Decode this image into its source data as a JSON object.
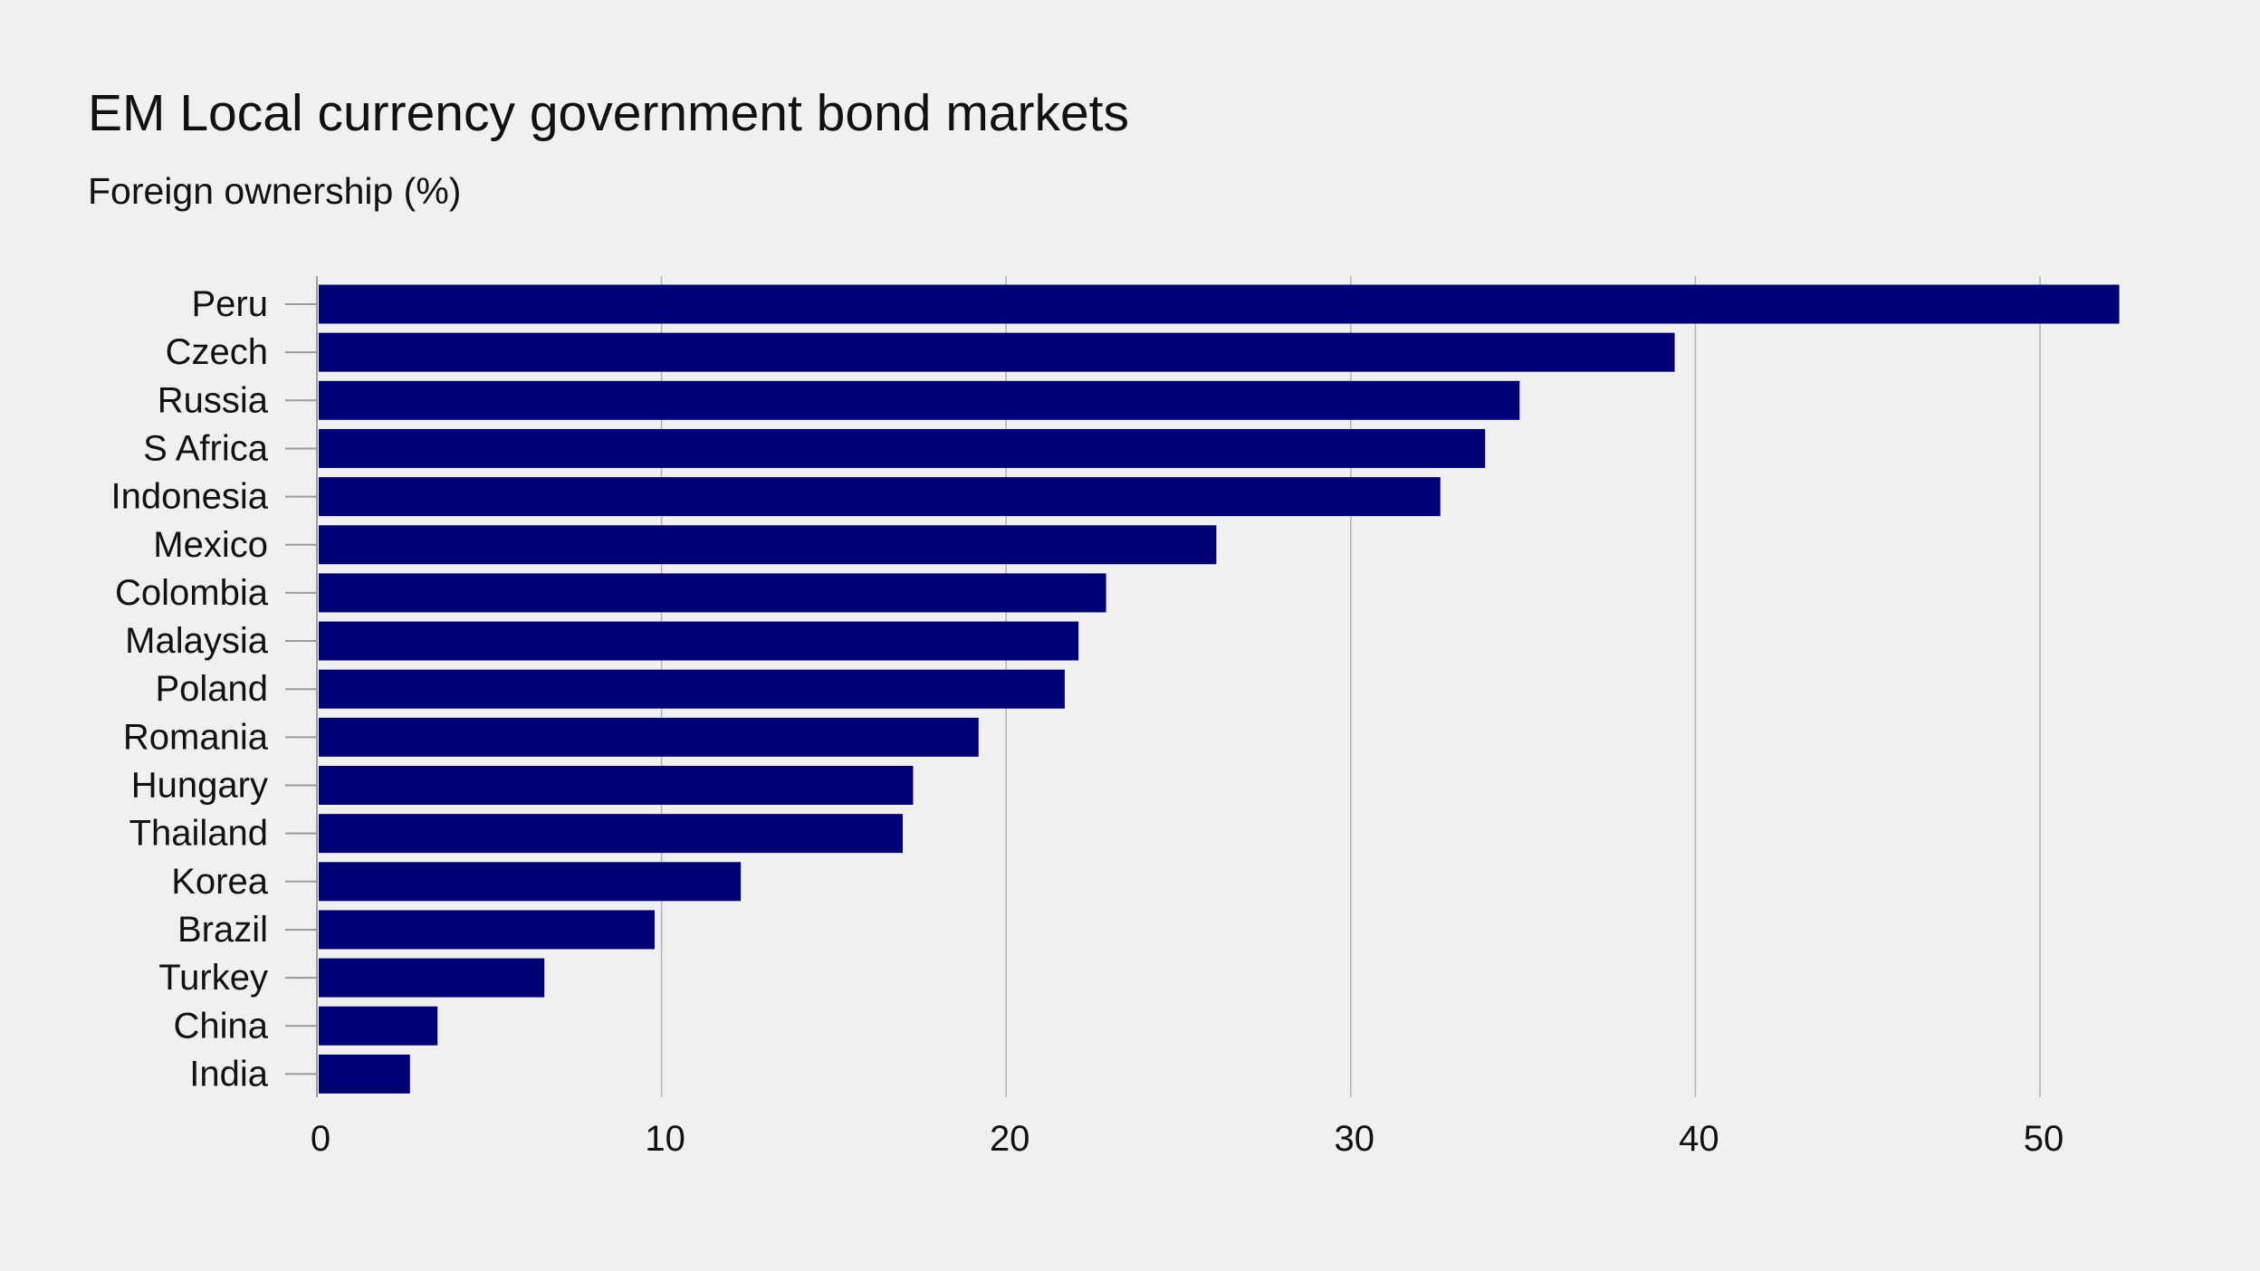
{
  "chart_data": {
    "type": "bar",
    "orientation": "horizontal",
    "title": "EM Local currency government bond markets",
    "subtitle": "Foreign ownership (%)",
    "xlabel": "",
    "ylabel": "",
    "categories": [
      "Peru",
      "Czech",
      "Russia",
      "S Africa",
      "Indonesia",
      "Mexico",
      "Colombia",
      "Malaysia",
      "Poland",
      "Romania",
      "Hungary",
      "Thailand",
      "Korea",
      "Brazil",
      "Turkey",
      "China",
      "India"
    ],
    "values": [
      52.3,
      39.4,
      34.9,
      33.9,
      32.6,
      26.1,
      22.9,
      22.1,
      21.7,
      19.2,
      17.3,
      17.0,
      12.3,
      9.8,
      6.6,
      3.5,
      2.7
    ],
    "xlim": [
      0,
      53
    ],
    "xticks": [
      0,
      10,
      20,
      30,
      40,
      50
    ],
    "grid": true,
    "legend": "none",
    "colors": {
      "bar": "#000074",
      "background": "#f0f0f0",
      "grid": "#b4b4b4",
      "axis": "#9a9a9a"
    }
  }
}
